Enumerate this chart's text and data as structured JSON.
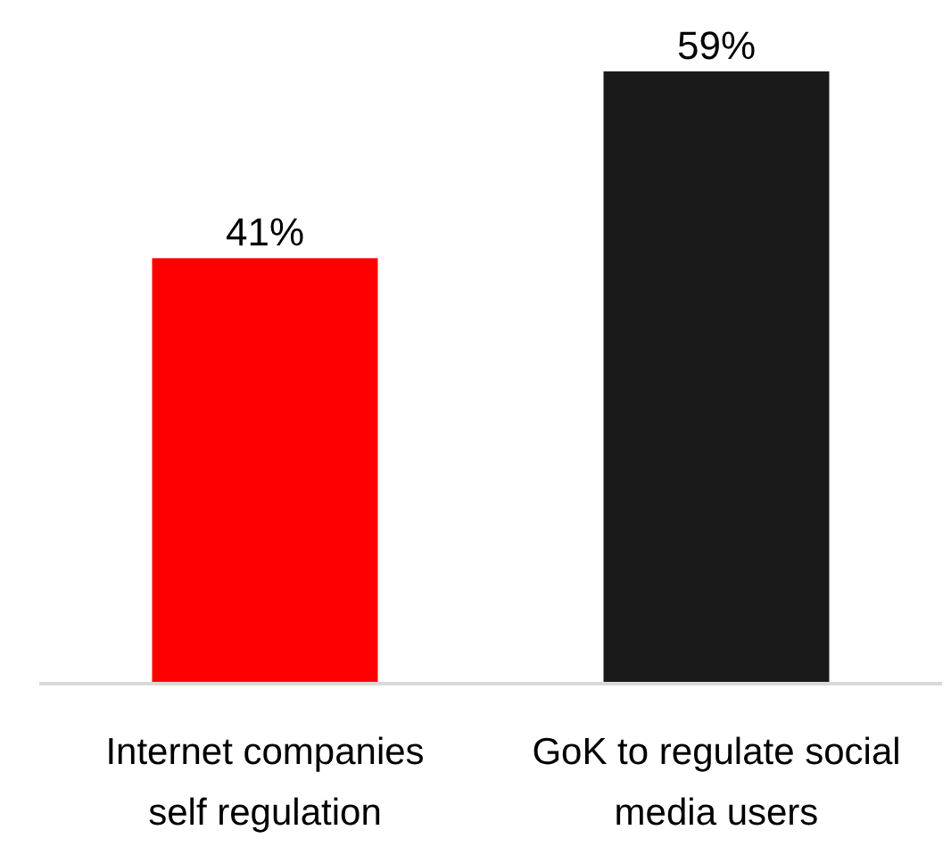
{
  "chart_data": {
    "type": "bar",
    "categories": [
      "Internet companies self regulation",
      "GoK to regulate social media users"
    ],
    "values": [
      41,
      59
    ],
    "value_labels": [
      "41%",
      "59%"
    ],
    "colors": [
      "#ff0000",
      "#1a1a1a"
    ]
  }
}
